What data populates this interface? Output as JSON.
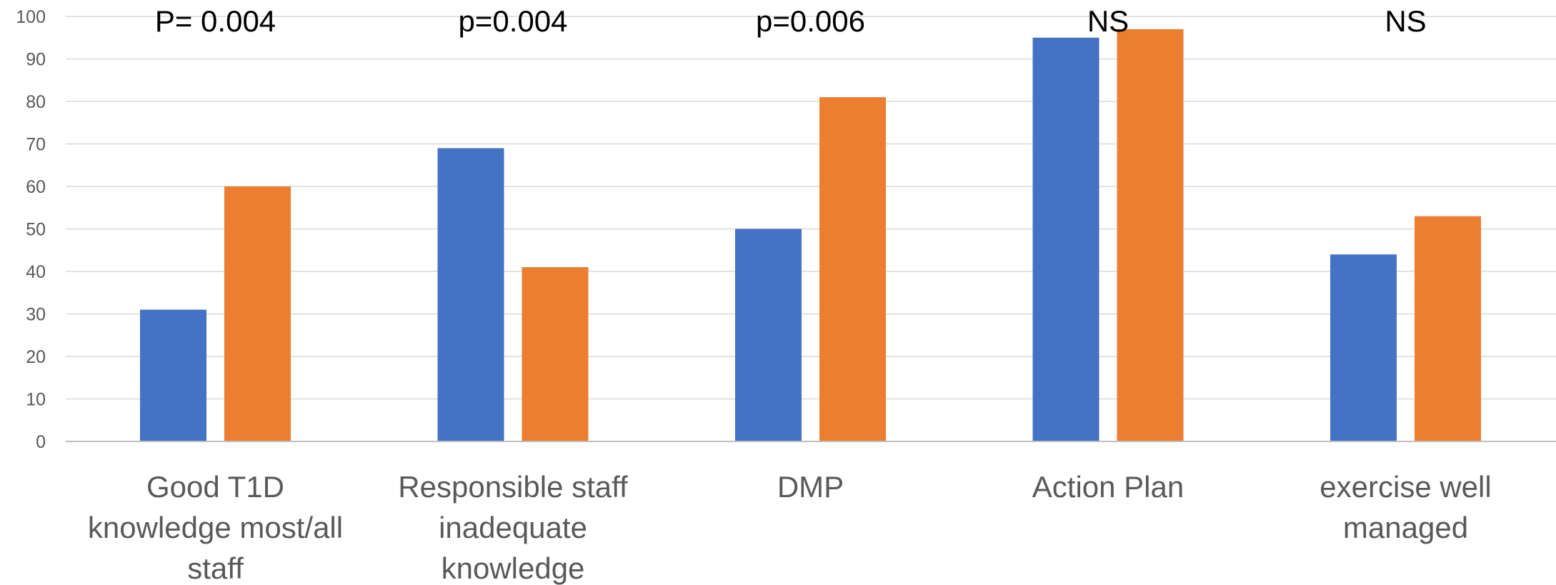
{
  "chart_data": {
    "type": "bar",
    "categories": [
      [
        "Good T1D",
        "knowledge most/all",
        "staff"
      ],
      [
        "Responsible staff",
        "inadequate",
        "knowledge"
      ],
      [
        "DMP"
      ],
      [
        "Action Plan"
      ],
      [
        "exercise well",
        "managed"
      ]
    ],
    "series": [
      {
        "color": "#4472c4",
        "values": [
          31,
          69,
          50,
          95,
          44
        ]
      },
      {
        "color": "#ed7d31",
        "values": [
          60,
          41,
          81,
          97,
          53
        ]
      }
    ],
    "annotations": [
      "P= 0.004",
      "p=0.004",
      "p=0.006",
      "NS",
      "NS"
    ],
    "ylim": [
      0,
      100
    ],
    "yticks": [
      0,
      10,
      20,
      30,
      40,
      50,
      60,
      70,
      80,
      90,
      100
    ],
    "grid": true,
    "legend": "none",
    "title": "",
    "xlabel": "",
    "ylabel": ""
  }
}
